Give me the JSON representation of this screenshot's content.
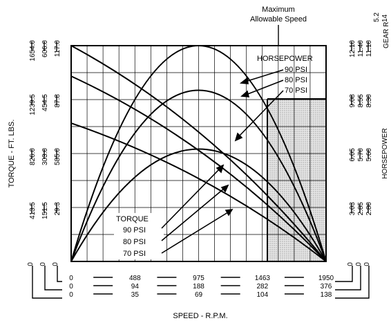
{
  "chart_data": {
    "type": "line",
    "annotation": {
      "max_speed": [
        "Maximum",
        "Allowable Speed"
      ]
    },
    "x_axis": {
      "label": "SPEED - R.P.M.",
      "primary_ticks": [
        "0",
        "488",
        "975",
        "1463",
        "1950"
      ],
      "secondary_ticks_1": [
        "0",
        "94",
        "188",
        "282",
        "376"
      ],
      "secondary_ticks_2": [
        "0",
        "35",
        "69",
        "104",
        "138"
      ],
      "range": [
        0,
        1950
      ],
      "shaded_from": 1463
    },
    "y_left": {
      "label": "TORQUE - FT. LBS.",
      "columns": [
        [
          "0",
          "413.5",
          "826.0",
          "1239.5",
          "1654.0"
        ],
        [
          "0",
          "151.5",
          "303.0",
          "454.5",
          "606.0"
        ],
        [
          "0",
          "29.3",
          "585.0",
          "87.8",
          "117.0"
        ]
      ]
    },
    "y_right": {
      "label": "HORSEPOWER",
      "columns": [
        [
          "0",
          "3.03",
          "6.05",
          "9.08",
          "12.10"
        ],
        [
          "0",
          "2.85",
          "5.70",
          "8.55",
          "11.40"
        ],
        [
          "0",
          "2.80",
          "5.60",
          "8.30",
          "11.10"
        ]
      ],
      "top_partial": [
        "5.2",
        "14"
      ],
      "top_label_partial": "GEAR R"
    },
    "grid": true,
    "horsepower_legend": {
      "title": "HORSEPOWER",
      "items": [
        "90 PSI",
        "80 PSI",
        "70 PSI"
      ]
    },
    "torque_legend": {
      "title": "TORQUE",
      "items": [
        "90 PSI",
        "80 PSI",
        "70 PSI"
      ]
    },
    "series": [
      {
        "name": "HORSEPOWER 90 PSI",
        "kind": "horsepower",
        "x": [
          0,
          975,
          1950
        ],
        "y": [
          0,
          12.1,
          0
        ]
      },
      {
        "name": "HORSEPOWER 80 PSI",
        "kind": "horsepower",
        "x": [
          0,
          975,
          1950
        ],
        "y": [
          0,
          9.6,
          0
        ]
      },
      {
        "name": "HORSEPOWER 70 PSI",
        "kind": "horsepower",
        "x": [
          0,
          975,
          1950
        ],
        "y": [
          0,
          6.3,
          0
        ]
      },
      {
        "name": "TORQUE 90 PSI",
        "kind": "torque",
        "x": [
          0,
          1950
        ],
        "y": [
          1654,
          0
        ]
      },
      {
        "name": "TORQUE 80 PSI",
        "kind": "torque",
        "x": [
          0,
          1950
        ],
        "y": [
          1420,
          0
        ]
      },
      {
        "name": "TORQUE 70 PSI",
        "kind": "torque",
        "x": [
          0,
          1950
        ],
        "y": [
          1060,
          0
        ]
      }
    ]
  }
}
